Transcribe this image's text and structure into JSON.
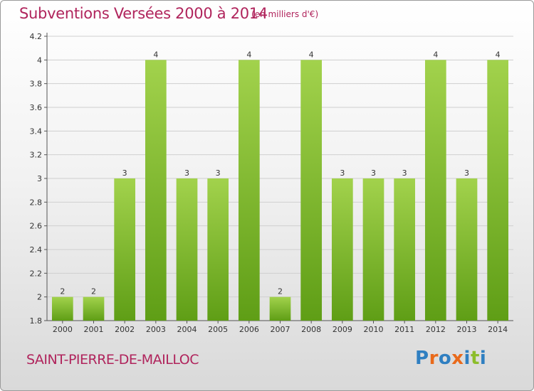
{
  "header": {
    "title": "Subventions Versées 2000 à 2014",
    "unit": "(en milliers d'€)"
  },
  "footer": {
    "commune": "SAINT-PIERRE-DE-MAILLOC",
    "logo_text": "Proxiti"
  },
  "colors": {
    "title": "#b0245c",
    "bar_top": "#a2d24c",
    "bar_bottom": "#5f9e16",
    "grid": "#cfcfcf",
    "logo": [
      "#2f7fc1",
      "#e96a1b",
      "#2f7fc1",
      "#e96a1b",
      "#2f7fc1",
      "#8cbd2a",
      "#2f7fc1"
    ]
  },
  "chart_data": {
    "type": "bar",
    "categories": [
      "2000",
      "2001",
      "2002",
      "2003",
      "2004",
      "2005",
      "2006",
      "2007",
      "2008",
      "2009",
      "2010",
      "2011",
      "2012",
      "2013",
      "2014"
    ],
    "values": [
      2,
      2,
      3,
      4,
      3,
      3,
      4,
      2,
      4,
      3,
      3,
      3,
      4,
      3,
      4
    ],
    "data_labels": [
      "2",
      "2",
      "3",
      "4",
      "3",
      "3",
      "4",
      "2",
      "4",
      "3",
      "3",
      "3",
      "4",
      "3",
      "4"
    ],
    "yticks": [
      "1.8",
      "2",
      "2.2",
      "2.4",
      "2.6",
      "2.8",
      "3",
      "3.2",
      "3.4",
      "3.6",
      "3.8",
      "4",
      "4.2"
    ],
    "ylim": [
      1.8,
      4.2
    ],
    "grid": true,
    "legend": "none"
  }
}
